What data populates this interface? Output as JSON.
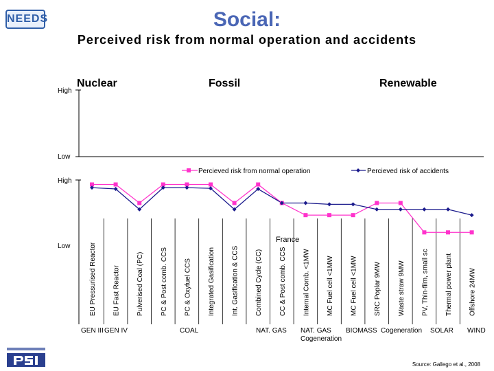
{
  "logo_text": "NEEDS",
  "title": "Social:",
  "subtitle": "Perceived risk from normal operation and accidents",
  "sections": {
    "nuclear": "Nuclear",
    "fossil": "Fossil",
    "renewable": "Renewable"
  },
  "axis_words": {
    "high": "High",
    "low": "Low"
  },
  "annotation": "France",
  "source": "Source: Gallego et al., 2008",
  "groups": [
    "GEN III",
    "GEN IV",
    "COAL",
    "NAT. GAS",
    "NAT. GAS Cogeneration",
    "BIOMASS",
    "Cogeneration",
    "SOLAR",
    "WIND"
  ],
  "colors": {
    "normal": "#ff33cc",
    "accidents": "#1a1a8c",
    "title": "#4a66b5",
    "grid": "#000000"
  },
  "chart_data": {
    "type": "line",
    "categories": [
      "EU Pressurised Reactor",
      "EU Fast Reactor",
      "Pulverised Coal (PC)",
      "PC & Post comb. CCS",
      "PC & Oxyfuel CCS",
      "Integrated Gasification",
      "Int. Gasification & CCS",
      "Combined Cycle (CC)",
      "CC & Post comb. CCS",
      "Internal Comb. <1MW",
      "MC Fuel cell <1MW",
      "MC Fuel cell <1MW",
      "SRC Poplar 9MW",
      "Waste straw 9MW",
      "PV, Thin-film, small sc",
      "Thermal power plant",
      "Offshore 24MW"
    ],
    "series": [
      {
        "name": "Percieved risk from normal operation",
        "marker": "square",
        "values": [
          0.93,
          0.93,
          0.64,
          0.93,
          0.93,
          0.93,
          0.64,
          0.93,
          0.64,
          0.45,
          0.45,
          0.45,
          0.64,
          0.64,
          0.18,
          0.18,
          0.18
        ]
      },
      {
        "name": "Percieved risk of accidents",
        "marker": "diamond",
        "values": [
          0.88,
          0.86,
          0.54,
          0.88,
          0.88,
          0.87,
          0.54,
          0.86,
          0.64,
          0.64,
          0.62,
          0.62,
          0.54,
          0.54,
          0.54,
          0.54,
          0.45
        ]
      }
    ],
    "ylim": [
      0,
      1
    ],
    "ylabel_top": "High",
    "ylabel_bottom": "Low"
  }
}
